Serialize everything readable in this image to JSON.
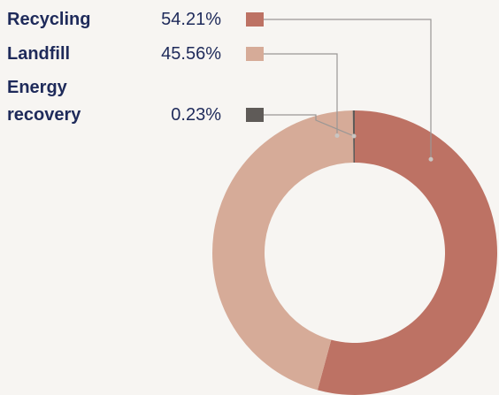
{
  "chart_data": {
    "type": "donut",
    "categories": [
      "Recycling",
      "Landfill",
      "Energy recovery"
    ],
    "values": [
      54.21,
      45.56,
      0.23
    ],
    "value_labels": [
      "54.21%",
      "45.56%",
      "0.23%"
    ],
    "colors": [
      "#bd7264",
      "#d6ab98",
      "#5f5b58"
    ]
  }
}
